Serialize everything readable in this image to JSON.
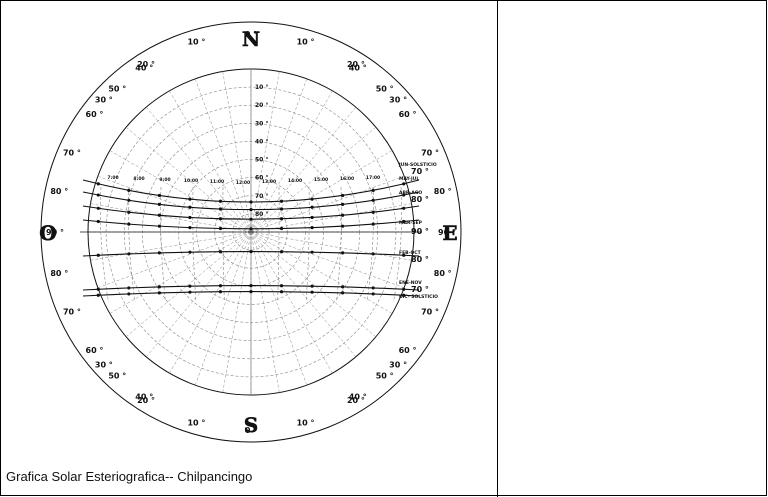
{
  "caption": "Grafica Solar Esteriografica-- Chilpancingo",
  "cardinals": {
    "north": "N",
    "south": "S",
    "east": "E",
    "west": "O"
  },
  "rim_labels": {
    "top": [
      "30 °",
      "20 °",
      "10 °",
      "0 °",
      "10 °",
      "20 °",
      "30 °"
    ],
    "left": [
      "40 °",
      "50 °",
      "60 °",
      "70 °",
      "80 °",
      "90 °",
      "80 °",
      "70 °",
      "60 °",
      "50 °",
      "40 °"
    ],
    "right": [
      "40 °",
      "50 °",
      "60 °",
      "70 °",
      "80 °",
      "90 °",
      "80 °",
      "70 °",
      "60 °",
      "50 °",
      "40 °"
    ],
    "bottom": [
      "30 °",
      "20 °",
      "10 °",
      "0 °",
      "10 °",
      "20 °",
      "30 °"
    ]
  },
  "altitude_labels": [
    "10 °",
    "20 °",
    "30 °",
    "40 °",
    "50 °",
    "60 °",
    "70 °",
    "80 °"
  ],
  "date_paths": [
    "JUN-SOLSTICIO",
    "MAY-JUL",
    "ABR-AGO",
    "MAR-SEP",
    "FEB-OCT",
    "ENE-NOV",
    "DIC- SOLSTICIO"
  ],
  "date_path_values": [
    "70 °",
    "80 °",
    "90 °",
    "80 °",
    "70 °"
  ],
  "hour_labels": [
    "7:00",
    "8:00",
    "9:00",
    "10:00",
    "11:00",
    "12:00",
    "13:00",
    "14:00",
    "15:00",
    "16:00",
    "17:00"
  ],
  "colors": {
    "lines": "#111111",
    "grid": "#888888",
    "background": "#ffffff"
  }
}
